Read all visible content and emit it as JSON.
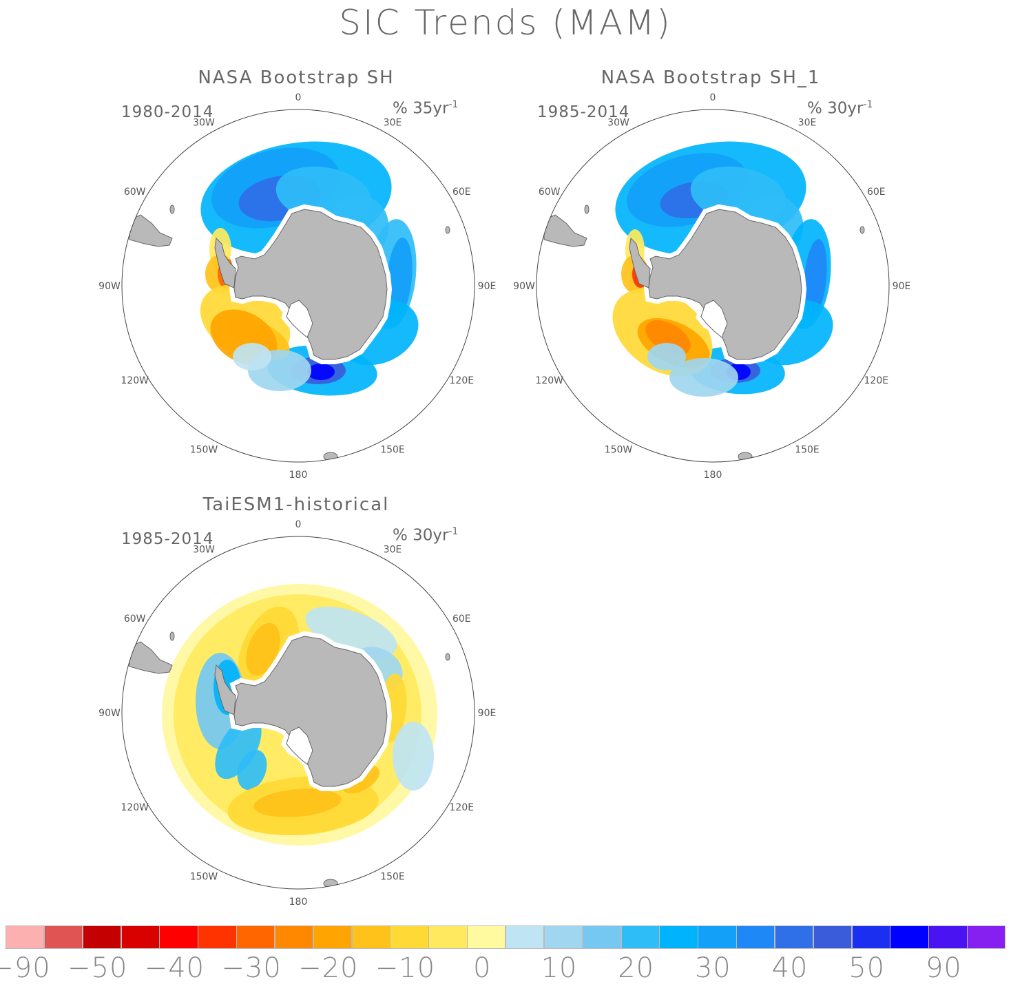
{
  "title": "SIC Trends (MAM)",
  "panels": [
    {
      "title": "NASA Bootstrap SH",
      "period": "1980-2014",
      "units": "% 35yr",
      "units_exp": "-1",
      "style": "obs1"
    },
    {
      "title": "NASA Bootstrap SH_1",
      "period": "1985-2014",
      "units": "% 30yr",
      "units_exp": "-1",
      "style": "obs2"
    },
    {
      "title": "TaiESM1-historical",
      "period": "1985-2014",
      "units": "% 30yr",
      "units_exp": "-1",
      "style": "model"
    }
  ],
  "longitude_labels": [
    "0",
    "30E",
    "60E",
    "90E",
    "120E",
    "150E",
    "180",
    "150W",
    "120W",
    "90W",
    "60W",
    "30W"
  ],
  "colorbar": {
    "colors": [
      "#fdb0b0",
      "#e05454",
      "#c40000",
      "#d90000",
      "#ff0000",
      "#ff3300",
      "#ff6600",
      "#ff8800",
      "#ffa400",
      "#ffc21a",
      "#ffd935",
      "#ffe95e",
      "#fff9a0",
      "#bfe4f3",
      "#a0d6f0",
      "#74c8f2",
      "#2fbdf7",
      "#00b4fb",
      "#12a0f9",
      "#1f88f7",
      "#2f6fe8",
      "#3a5cdb",
      "#1b2ff0",
      "#0000ff",
      "#4a13f2",
      "#8520f0"
    ],
    "labels": [
      "-90",
      "-50",
      "-40",
      "-30",
      "-20",
      "-10",
      "0",
      "10",
      "20",
      "30",
      "40",
      "50",
      "90"
    ]
  }
}
